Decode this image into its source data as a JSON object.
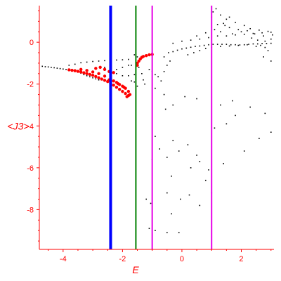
{
  "chart_data": {
    "type": "scatter",
    "xlabel": "E",
    "ylabel": "<J3>",
    "xlim": [
      -4.8,
      3.1
    ],
    "ylim": [
      -9.9,
      1.75
    ],
    "x_ticks": [
      -4,
      -2,
      0,
      2
    ],
    "x_tick_labels": [
      "-4",
      "-2",
      "0",
      "2"
    ],
    "y_ticks": [
      0,
      -2,
      -4,
      -6,
      -8
    ],
    "y_tick_labels": [
      "0",
      "-2",
      "-4",
      "-6",
      "-8"
    ],
    "grid": false,
    "colors": {
      "axis": "#ff0000",
      "black_points": "#000000",
      "red_points": "#ff0000",
      "blue_line": "#0000ff",
      "green_line": "#008000",
      "magenta_line": "#e600e6"
    },
    "vertical_lines": [
      {
        "x": -2.4,
        "color": "blue"
      },
      {
        "x": -1.55,
        "color": "green"
      },
      {
        "x": -1.0,
        "color": "magenta"
      },
      {
        "x": 1.0,
        "color": "magenta"
      }
    ],
    "series": [
      {
        "color": "black",
        "points": [
          [
            -4.7,
            -1.15
          ],
          [
            -4.6,
            -1.17
          ],
          [
            -4.5,
            -1.18
          ],
          [
            -4.4,
            -1.2
          ],
          [
            -4.3,
            -1.22
          ],
          [
            -4.2,
            -1.24
          ],
          [
            -4.1,
            -1.26
          ],
          [
            -4.0,
            -1.28
          ],
          [
            -3.9,
            -1.3
          ],
          [
            -3.8,
            -1.33
          ],
          [
            -3.7,
            -1.36
          ],
          [
            -3.6,
            -1.39
          ],
          [
            -3.5,
            -1.43
          ],
          [
            -3.4,
            -1.48
          ],
          [
            -3.3,
            -1.55
          ],
          [
            -3.2,
            -1.6
          ],
          [
            -3.1,
            -1.65
          ],
          [
            -3.0,
            -1.7
          ],
          [
            -2.9,
            -1.75
          ],
          [
            -2.8,
            -1.8
          ],
          [
            -3.8,
            -1.1
          ],
          [
            -3.6,
            -1.05
          ],
          [
            -3.4,
            -0.98
          ],
          [
            -3.2,
            -0.95
          ],
          [
            -3.0,
            -0.92
          ],
          [
            -2.8,
            -0.9
          ],
          [
            -2.6,
            -0.88
          ],
          [
            -2.4,
            -0.86
          ],
          [
            -2.2,
            -0.85
          ],
          [
            -2.0,
            -0.84
          ],
          [
            -1.8,
            -0.82
          ],
          [
            -2.6,
            -1.2
          ],
          [
            -2.4,
            -1.3
          ],
          [
            -2.2,
            -1.3
          ],
          [
            -2.0,
            -1.2
          ],
          [
            -1.8,
            -1.1
          ],
          [
            -1.7,
            -1.1
          ],
          [
            -2.2,
            -1.5
          ],
          [
            -2.0,
            -1.6
          ],
          [
            -1.8,
            -1.6
          ],
          [
            -1.6,
            -1.55
          ],
          [
            -1.7,
            -1.85
          ],
          [
            -1.6,
            -1.9
          ],
          [
            -1.5,
            -2.1
          ],
          [
            -1.6,
            -0.6
          ],
          [
            -1.5,
            -0.7
          ],
          [
            -1.55,
            -1.0
          ],
          [
            -1.45,
            -1.2
          ],
          [
            -1.35,
            -1.5
          ],
          [
            -1.3,
            -1.8
          ],
          [
            -1.25,
            -2.0
          ],
          [
            -1.1,
            -1.3
          ],
          [
            -1.0,
            -1.4
          ],
          [
            -0.9,
            -1.55
          ],
          [
            -0.8,
            -1.65
          ],
          [
            -0.7,
            -1.85
          ],
          [
            -0.6,
            -1.4
          ],
          [
            -0.5,
            -1.1
          ],
          [
            -0.4,
            -0.9
          ],
          [
            -0.9,
            -2.2
          ],
          [
            -0.6,
            -2.5
          ],
          [
            -0.55,
            -3.2
          ],
          [
            -0.9,
            -4.5
          ],
          [
            -0.75,
            -5.1
          ],
          [
            -1.0,
            -5.6
          ],
          [
            -0.5,
            -5.5
          ],
          [
            -0.3,
            -4.7
          ],
          [
            -0.1,
            -5.2
          ],
          [
            0.2,
            -4.9
          ],
          [
            0.5,
            -5.4
          ],
          [
            0.3,
            -6.0
          ],
          [
            0.6,
            -5.7
          ],
          [
            0.8,
            -6.6
          ],
          [
            -0.35,
            -6.4
          ],
          [
            -0.5,
            -7.2
          ],
          [
            -0.05,
            -7.5
          ],
          [
            0.25,
            -7.3
          ],
          [
            0.6,
            -7.8
          ],
          [
            0.9,
            -6.1
          ],
          [
            1.0,
            -7.2
          ],
          [
            -1.1,
            -8.9
          ],
          [
            -0.9,
            -9.0
          ],
          [
            -0.5,
            -9.1
          ],
          [
            -0.35,
            -8.2
          ],
          [
            -0.1,
            -9.1
          ],
          [
            -1.2,
            -7.5
          ],
          [
            -1.05,
            -7.7
          ],
          [
            1.1,
            -4.1
          ],
          [
            1.4,
            -5.8
          ],
          [
            1.5,
            -3.9
          ],
          [
            1.8,
            -3.5
          ],
          [
            2.1,
            -5.2
          ],
          [
            2.3,
            -3.1
          ],
          [
            2.6,
            -4.6
          ],
          [
            2.8,
            -3.4
          ],
          [
            3.0,
            -4.3
          ],
          [
            -0.3,
            -3.0
          ],
          [
            0.1,
            -2.6
          ],
          [
            0.5,
            -2.7
          ],
          [
            1.3,
            -3.0
          ],
          [
            1.7,
            -2.8
          ],
          [
            -0.6,
            -0.7
          ],
          [
            -0.45,
            -0.5
          ],
          [
            -0.3,
            -0.45
          ],
          [
            -0.15,
            -0.38
          ],
          [
            0.0,
            -0.32
          ],
          [
            0.15,
            -0.28
          ],
          [
            0.3,
            -0.24
          ],
          [
            0.45,
            -0.2
          ],
          [
            0.6,
            -0.18
          ],
          [
            0.75,
            -0.15
          ],
          [
            0.9,
            -0.12
          ],
          [
            1.05,
            -0.1
          ],
          [
            1.2,
            -0.1
          ],
          [
            1.35,
            -0.1
          ],
          [
            1.5,
            -0.1
          ],
          [
            1.65,
            -0.12
          ],
          [
            1.8,
            -0.12
          ],
          [
            1.95,
            -0.13
          ],
          [
            2.1,
            -0.12
          ],
          [
            2.25,
            -0.1
          ],
          [
            2.4,
            -0.08
          ],
          [
            2.55,
            -0.08
          ],
          [
            2.7,
            -0.06
          ],
          [
            2.85,
            -0.06
          ],
          [
            3.0,
            -0.05
          ],
          [
            -0.3,
            -0.05
          ],
          [
            0.0,
            0.05
          ],
          [
            0.3,
            0.1
          ],
          [
            0.6,
            0.15
          ],
          [
            0.9,
            0.22
          ],
          [
            1.2,
            0.3
          ],
          [
            1.5,
            0.3
          ],
          [
            1.8,
            0.35
          ],
          [
            2.1,
            0.38
          ],
          [
            2.4,
            0.42
          ],
          [
            2.7,
            0.45
          ],
          [
            3.0,
            0.48
          ],
          [
            0.2,
            -0.6
          ],
          [
            0.4,
            -0.5
          ],
          [
            0.6,
            -0.4
          ],
          [
            0.8,
            -0.3
          ],
          [
            1.0,
            -0.25
          ],
          [
            1.3,
            -0.2
          ],
          [
            1.6,
            -0.18
          ],
          [
            1.9,
            -0.15
          ],
          [
            2.2,
            -0.12
          ],
          [
            2.5,
            -0.2
          ],
          [
            2.8,
            -0.25
          ],
          [
            0.5,
            0.3
          ],
          [
            0.8,
            0.45
          ],
          [
            1.1,
            0.6
          ],
          [
            1.2,
            0.85
          ],
          [
            1.3,
            0.5
          ],
          [
            1.4,
            0.9
          ],
          [
            1.5,
            1.1
          ],
          [
            1.6,
            0.7
          ],
          [
            1.7,
            0.4
          ],
          [
            1.8,
            0.95
          ],
          [
            1.9,
            0.6
          ],
          [
            2.0,
            0.5
          ],
          [
            2.1,
            0.8
          ],
          [
            2.2,
            0.55
          ],
          [
            2.3,
            0.65
          ],
          [
            2.45,
            0.4
          ],
          [
            2.6,
            0.58
          ],
          [
            2.75,
            0.3
          ],
          [
            2.9,
            0.52
          ],
          [
            3.05,
            0.35
          ],
          [
            1.0,
            1.2
          ],
          [
            1.05,
            1.45
          ],
          [
            1.15,
            1.6
          ],
          [
            1.3,
            1.3
          ],
          [
            1.45,
            0.8
          ],
          [
            1.6,
            1.2
          ],
          [
            2.35,
            0.2
          ],
          [
            2.55,
            0.1
          ],
          [
            2.8,
            0.05
          ],
          [
            3.0,
            0.15
          ],
          [
            2.65,
            -0.15
          ],
          [
            2.9,
            -0.4
          ],
          [
            3.0,
            -0.9
          ],
          [
            2.75,
            -0.7
          ]
        ]
      },
      {
        "color": "red",
        "points": [
          [
            -3.8,
            -1.32
          ],
          [
            -3.6,
            -1.36
          ],
          [
            -3.4,
            -1.42
          ],
          [
            -3.2,
            -1.5
          ],
          [
            -3.0,
            -1.58
          ],
          [
            -2.8,
            -1.7
          ],
          [
            -2.6,
            -1.82
          ],
          [
            -2.4,
            -1.95
          ],
          [
            -2.3,
            -2.05
          ],
          [
            -2.2,
            -2.15
          ],
          [
            -2.1,
            -2.25
          ],
          [
            -2.0,
            -2.35
          ],
          [
            -1.9,
            -2.45
          ],
          [
            -1.8,
            -2.55
          ],
          [
            -3.7,
            -1.34
          ],
          [
            -3.5,
            -1.39
          ],
          [
            -3.3,
            -1.46
          ],
          [
            -3.1,
            -1.54
          ],
          [
            -2.9,
            -1.64
          ],
          [
            -2.7,
            -1.76
          ],
          [
            -2.5,
            -1.88
          ],
          [
            -3.2,
            -1.35
          ],
          [
            -3.0,
            -1.42
          ],
          [
            -2.8,
            -1.5
          ],
          [
            -2.6,
            -1.62
          ],
          [
            -2.4,
            -1.76
          ],
          [
            -2.2,
            -1.92
          ],
          [
            -2.0,
            -2.1
          ],
          [
            -1.9,
            -2.2
          ],
          [
            -1.8,
            -2.35
          ],
          [
            -1.75,
            -2.5
          ],
          [
            -1.85,
            -2.6
          ],
          [
            -2.3,
            -1.85
          ],
          [
            -2.1,
            -2.02
          ],
          [
            -1.95,
            -2.15
          ],
          [
            -2.15,
            -1.98
          ],
          [
            -2.45,
            -1.8
          ],
          [
            -2.9,
            -1.25
          ],
          [
            -2.75,
            -1.2
          ],
          [
            -2.6,
            -1.3
          ],
          [
            -2.45,
            -1.4
          ],
          [
            -3.4,
            -1.3
          ],
          [
            -2.3,
            -1.45
          ],
          [
            -1.5,
            -1.0
          ],
          [
            -1.45,
            -0.9
          ],
          [
            -1.4,
            -0.8
          ],
          [
            -1.35,
            -0.72
          ],
          [
            -1.3,
            -0.68
          ],
          [
            -1.2,
            -0.64
          ],
          [
            -1.1,
            -0.6
          ],
          [
            -1.0,
            -0.58
          ],
          [
            -1.5,
            -1.1
          ]
        ]
      }
    ]
  }
}
